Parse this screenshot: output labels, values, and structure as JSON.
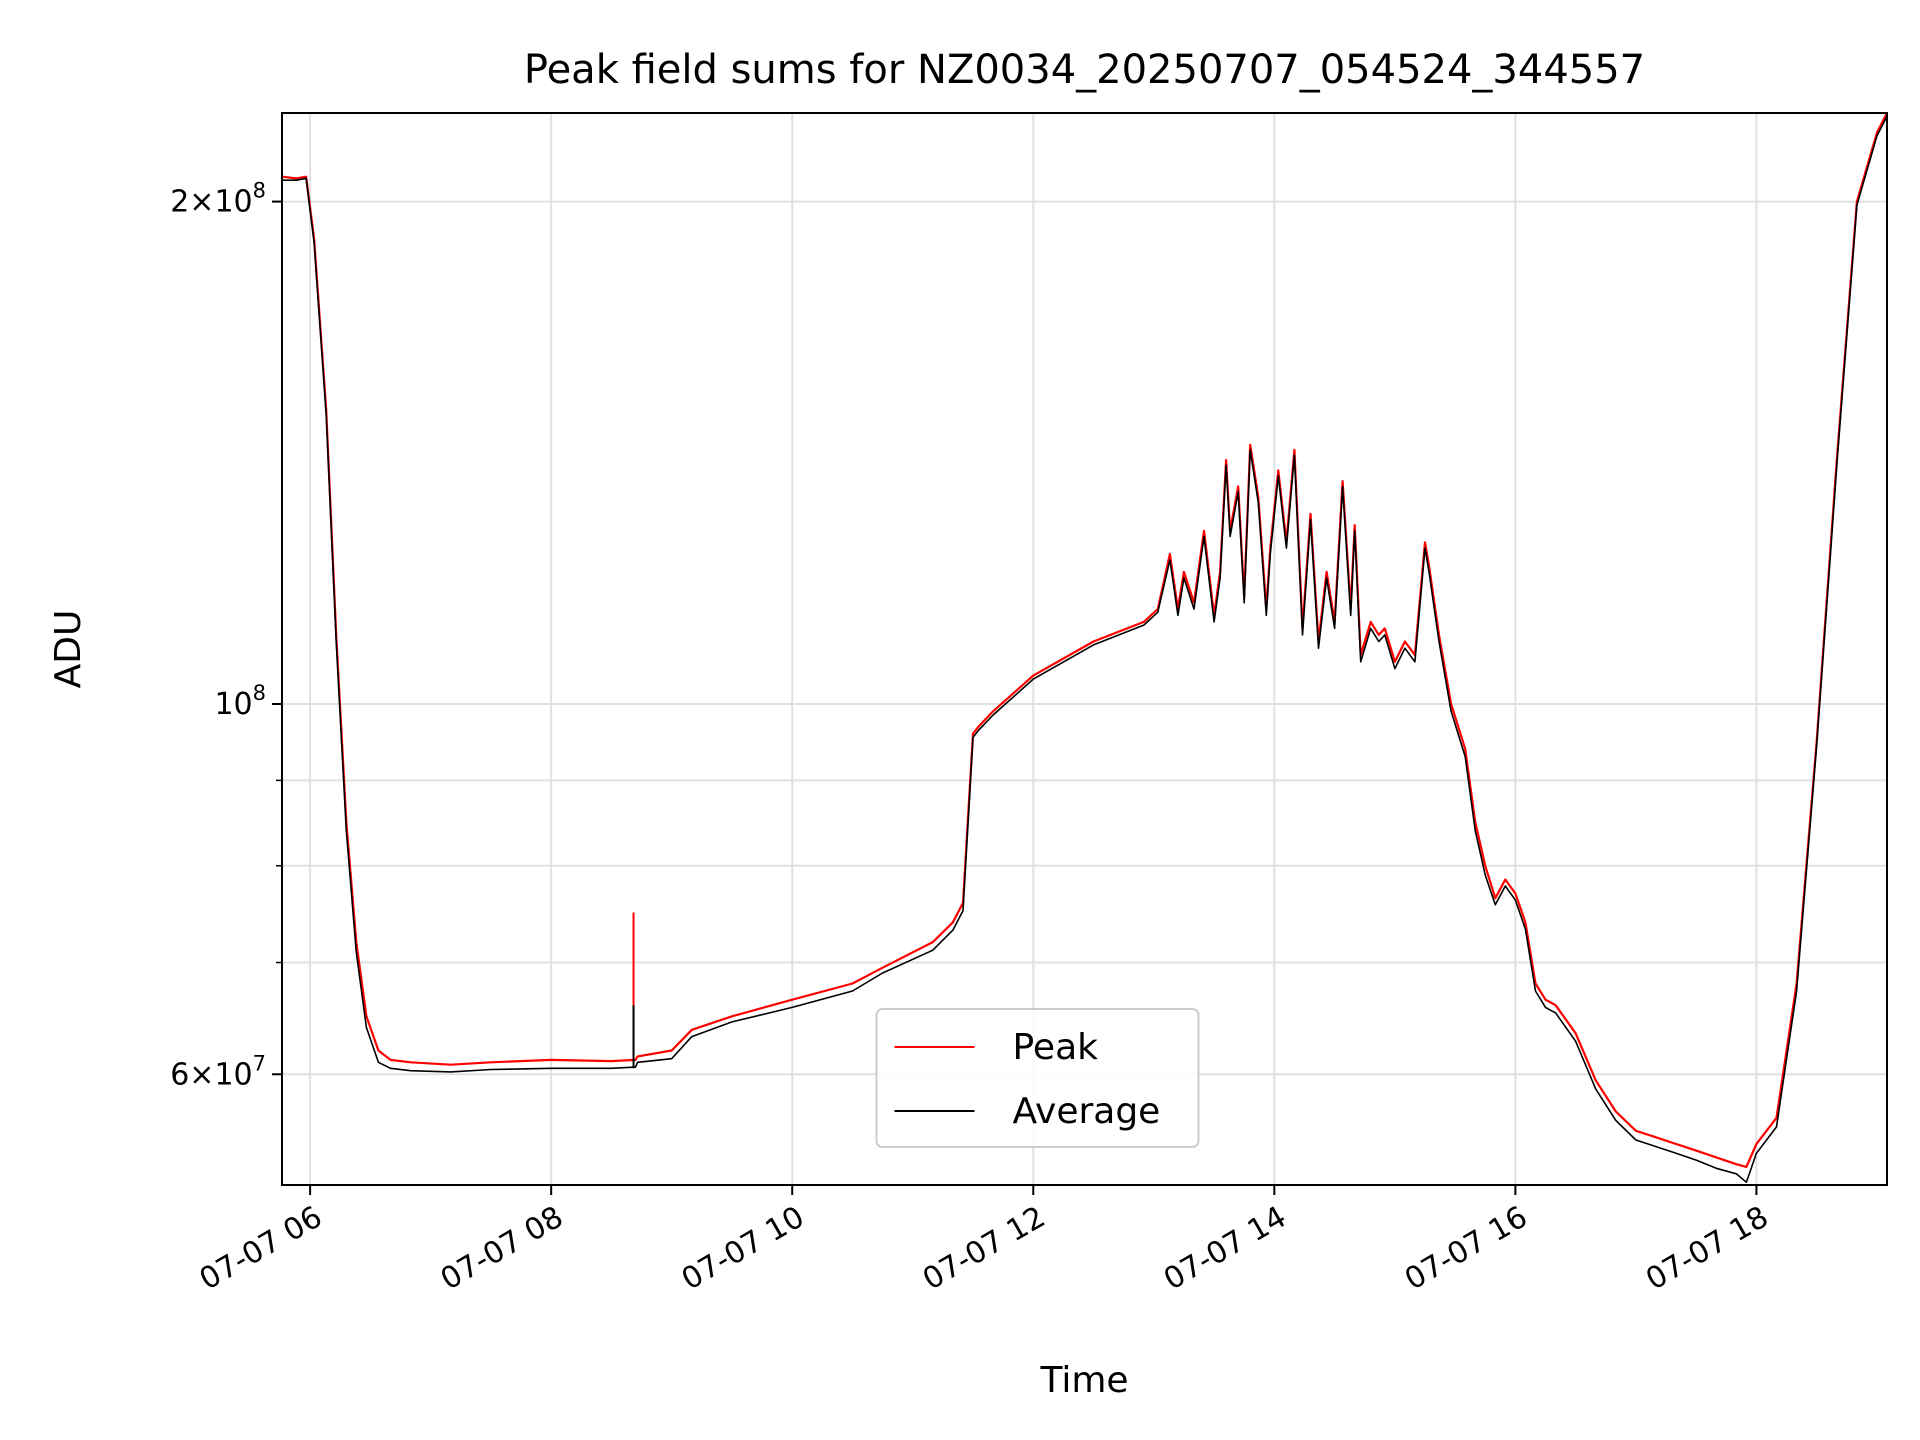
{
  "chart_data": {
    "type": "line",
    "title": "Peak field sums for NZ0034_20250707_054524_344557",
    "xlabel": "Time",
    "ylabel": "ADU",
    "y_scale": "log",
    "ylim": [
      51500000,
      226000000
    ],
    "xlim": [
      "2025-07-07 05:46",
      "2025-07-07 19:05"
    ],
    "grid": true,
    "legend_position": "lower center",
    "x_tick_labels": [
      "07-07 06",
      "07-07 08",
      "07-07 10",
      "07-07 12",
      "07-07 14",
      "07-07 16",
      "07-07 18"
    ],
    "x_tick_values": [
      "2025-07-07 06:00",
      "2025-07-07 08:00",
      "2025-07-07 10:00",
      "2025-07-07 12:00",
      "2025-07-07 14:00",
      "2025-07-07 16:00",
      "2025-07-07 18:00"
    ],
    "y_major_ticks": [
      {
        "value": 60000000,
        "mantissa": "6",
        "exp": "7"
      },
      {
        "value": 100000000,
        "mantissa": "",
        "exp": "8"
      },
      {
        "value": 200000000,
        "mantissa": "2",
        "exp": "8"
      }
    ],
    "y_minor_ticks": [
      70000000,
      80000000,
      90000000
    ],
    "x": [
      "2025-07-07 05:46",
      "2025-07-07 05:53",
      "2025-07-07 05:58",
      "2025-07-07 06:02",
      "2025-07-07 06:08",
      "2025-07-07 06:13",
      "2025-07-07 06:18",
      "2025-07-07 06:23",
      "2025-07-07 06:28",
      "2025-07-07 06:34",
      "2025-07-07 06:40",
      "2025-07-07 06:50",
      "2025-07-07 07:10",
      "2025-07-07 07:30",
      "2025-07-07 08:00",
      "2025-07-07 08:30",
      "2025-07-07 08:42",
      "2025-07-07 08:43",
      "2025-07-07 09:00",
      "2025-07-07 09:10",
      "2025-07-07 09:30",
      "2025-07-07 10:00",
      "2025-07-07 10:30",
      "2025-07-07 10:45",
      "2025-07-07 11:10",
      "2025-07-07 11:20",
      "2025-07-07 11:25",
      "2025-07-07 11:30",
      "2025-07-07 11:33",
      "2025-07-07 11:40",
      "2025-07-07 12:00",
      "2025-07-07 12:30",
      "2025-07-07 12:55",
      "2025-07-07 13:02",
      "2025-07-07 13:08",
      "2025-07-07 13:12",
      "2025-07-07 13:15",
      "2025-07-07 13:20",
      "2025-07-07 13:25",
      "2025-07-07 13:30",
      "2025-07-07 13:33",
      "2025-07-07 13:36",
      "2025-07-07 13:38",
      "2025-07-07 13:42",
      "2025-07-07 13:45",
      "2025-07-07 13:48",
      "2025-07-07 13:52",
      "2025-07-07 13:56",
      "2025-07-07 13:58",
      "2025-07-07 14:02",
      "2025-07-07 14:06",
      "2025-07-07 14:10",
      "2025-07-07 14:14",
      "2025-07-07 14:18",
      "2025-07-07 14:22",
      "2025-07-07 14:26",
      "2025-07-07 14:30",
      "2025-07-07 14:34",
      "2025-07-07 14:38",
      "2025-07-07 14:40",
      "2025-07-07 14:43",
      "2025-07-07 14:48",
      "2025-07-07 14:52",
      "2025-07-07 14:55",
      "2025-07-07 15:00",
      "2025-07-07 15:05",
      "2025-07-07 15:10",
      "2025-07-07 15:15",
      "2025-07-07 15:17",
      "2025-07-07 15:22",
      "2025-07-07 15:28",
      "2025-07-07 15:35",
      "2025-07-07 15:40",
      "2025-07-07 15:45",
      "2025-07-07 15:50",
      "2025-07-07 15:55",
      "2025-07-07 16:00",
      "2025-07-07 16:05",
      "2025-07-07 16:10",
      "2025-07-07 16:15",
      "2025-07-07 16:20",
      "2025-07-07 16:30",
      "2025-07-07 16:40",
      "2025-07-07 16:50",
      "2025-07-07 17:00",
      "2025-07-07 17:10",
      "2025-07-07 17:20",
      "2025-07-07 17:30",
      "2025-07-07 17:40",
      "2025-07-07 17:50",
      "2025-07-07 17:55",
      "2025-07-07 18:00",
      "2025-07-07 18:10",
      "2025-07-07 18:20",
      "2025-07-07 18:30",
      "2025-07-07 18:40",
      "2025-07-07 18:50",
      "2025-07-07 19:00",
      "2025-07-07 19:05"
    ],
    "series": [
      {
        "name": "Peak",
        "color": "#ff0000",
        "values": [
          207000000,
          206500000,
          207000000,
          190000000,
          150000000,
          110000000,
          85000000,
          72000000,
          65000000,
          62000000,
          61200000,
          61000000,
          60800000,
          61000000,
          61200000,
          61100000,
          61200000,
          61500000,
          62000000,
          63800000,
          65000000,
          66500000,
          68000000,
          69500000,
          72000000,
          74000000,
          76000000,
          96000000,
          97000000,
          99000000,
          104000000,
          109000000,
          112000000,
          114000000,
          123000000,
          114000000,
          120000000,
          115000000,
          127000000,
          113000000,
          120000000,
          140000000,
          127000000,
          135000000,
          116000000,
          143000000,
          133000000,
          114000000,
          124000000,
          138000000,
          125000000,
          142000000,
          111000000,
          130000000,
          109000000,
          120000000,
          112000000,
          136000000,
          114000000,
          128000000,
          107000000,
          112000000,
          110000000,
          111000000,
          106000000,
          109000000,
          107000000,
          125000000,
          121000000,
          110000000,
          100000000,
          94000000,
          85000000,
          80000000,
          76500000,
          78500000,
          77000000,
          74000000,
          68000000,
          66500000,
          66000000,
          63500000,
          59500000,
          57000000,
          55500000,
          55000000,
          54500000,
          54000000,
          53500000,
          53000000,
          52800000,
          54500000,
          56500000,
          68000000,
          95000000,
          140000000,
          200000000,
          220000000,
          226000000
        ]
      },
      {
        "name": "Average",
        "color": "#000000",
        "values": [
          206000000,
          206000000,
          206500000,
          189000000,
          149000000,
          109000000,
          84000000,
          71000000,
          64000000,
          61000000,
          60500000,
          60300000,
          60200000,
          60400000,
          60500000,
          60500000,
          60600000,
          61000000,
          61300000,
          63200000,
          64500000,
          65800000,
          67300000,
          69000000,
          71200000,
          73200000,
          75200000,
          95500000,
          96500000,
          98500000,
          103500000,
          108500000,
          111500000,
          113500000,
          122000000,
          113000000,
          119000000,
          114000000,
          126000000,
          112000000,
          119000000,
          139000000,
          126000000,
          134000000,
          115000000,
          142000000,
          132000000,
          113000000,
          123000000,
          137000000,
          124000000,
          141000000,
          110000000,
          129000000,
          108000000,
          119000000,
          111000000,
          135000000,
          113000000,
          127000000,
          106000000,
          111000000,
          109000000,
          110000000,
          105000000,
          108000000,
          106000000,
          124000000,
          120000000,
          109000000,
          99000000,
          93000000,
          84000000,
          79000000,
          75800000,
          77800000,
          76300000,
          73300000,
          67300000,
          65800000,
          65300000,
          62800000,
          58800000,
          56300000,
          54800000,
          54300000,
          53800000,
          53300000,
          52700000,
          52300000,
          51700000,
          53800000,
          55800000,
          67300000,
          94500000,
          139000000,
          199000000,
          219000000,
          225000000
        ]
      }
    ],
    "annotations": [
      {
        "series": "Peak",
        "x": "2025-07-07 08:41",
        "value": 75000000
      },
      {
        "series": "Average",
        "x": "2025-07-07 08:41",
        "value": 66000000
      }
    ]
  }
}
